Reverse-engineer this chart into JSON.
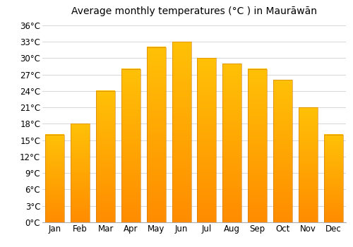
{
  "title": "Average monthly temperatures (°C ) in Maurāwān",
  "months": [
    "Jan",
    "Feb",
    "Mar",
    "Apr",
    "May",
    "Jun",
    "Jul",
    "Aug",
    "Sep",
    "Oct",
    "Nov",
    "Dec"
  ],
  "values": [
    16,
    18,
    24,
    28,
    32,
    33,
    30,
    29,
    28,
    26,
    21,
    16
  ],
  "yticks": [
    0,
    3,
    6,
    9,
    12,
    15,
    18,
    21,
    24,
    27,
    30,
    33,
    36
  ],
  "ytick_labels": [
    "0°C",
    "3°C",
    "6°C",
    "9°C",
    "12°C",
    "15°C",
    "18°C",
    "21°C",
    "24°C",
    "27°C",
    "30°C",
    "33°C",
    "36°C"
  ],
  "ylim": [
    0,
    37
  ],
  "background_color": "#ffffff",
  "grid_color": "#d8d8d8",
  "title_fontsize": 10,
  "tick_fontsize": 8.5,
  "bar_color_light": "#FFB300",
  "bar_color_dark": "#E65100",
  "bar_width": 0.75
}
